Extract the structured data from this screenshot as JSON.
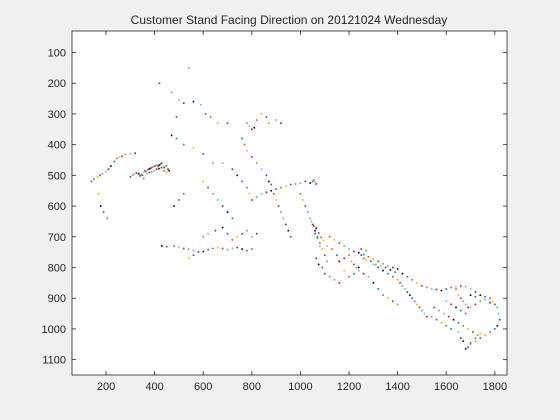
{
  "chart_data": {
    "type": "scatter",
    "title": "Customer Stand Facing Direction on 20121024 Wednesday",
    "xlabel": "",
    "ylabel": "",
    "xlim": [
      60,
      1850
    ],
    "ylim": [
      1150,
      30
    ],
    "y_reversed": true,
    "grid": false,
    "x_ticks": [
      200,
      400,
      600,
      800,
      1000,
      1200,
      1400,
      1600,
      1800
    ],
    "y_ticks": [
      100,
      200,
      300,
      400,
      500,
      600,
      700,
      800,
      900,
      1000,
      1100
    ],
    "colors": [
      "#0072bd",
      "#d95319",
      "#edb120",
      "#7e2f8e",
      "#77ac30",
      "#4dbeee",
      "#a2142f",
      "#000000"
    ],
    "points": [
      [
        140,
        520
      ],
      [
        150,
        512
      ],
      [
        165,
        505
      ],
      [
        175,
        500
      ],
      [
        185,
        495
      ],
      [
        200,
        488
      ],
      [
        210,
        480
      ],
      [
        220,
        470
      ],
      [
        235,
        455
      ],
      [
        245,
        445
      ],
      [
        255,
        440
      ],
      [
        265,
        438
      ],
      [
        280,
        432
      ],
      [
        300,
        430
      ],
      [
        320,
        428
      ],
      [
        178,
        600
      ],
      [
        190,
        620
      ],
      [
        205,
        640
      ],
      [
        170,
        560
      ],
      [
        300,
        505
      ],
      [
        310,
        500
      ],
      [
        315,
        495
      ],
      [
        325,
        492
      ],
      [
        335,
        495
      ],
      [
        340,
        502
      ],
      [
        345,
        498
      ],
      [
        355,
        490
      ],
      [
        360,
        485
      ],
      [
        365,
        488
      ],
      [
        370,
        482
      ],
      [
        375,
        480
      ],
      [
        380,
        478
      ],
      [
        385,
        476
      ],
      [
        390,
        474
      ],
      [
        395,
        472
      ],
      [
        400,
        470
      ],
      [
        405,
        468
      ],
      [
        410,
        466
      ],
      [
        415,
        470
      ],
      [
        420,
        466
      ],
      [
        425,
        462
      ],
      [
        430,
        460
      ],
      [
        435,
        472
      ],
      [
        440,
        475
      ],
      [
        445,
        470
      ],
      [
        450,
        468
      ],
      [
        455,
        480
      ],
      [
        460,
        485
      ],
      [
        350,
        500
      ],
      [
        355,
        510
      ],
      [
        368,
        495
      ],
      [
        378,
        490
      ],
      [
        388,
        488
      ],
      [
        398,
        485
      ],
      [
        408,
        480
      ],
      [
        418,
        478
      ],
      [
        428,
        475
      ],
      [
        438,
        485
      ],
      [
        448,
        490
      ],
      [
        420,
        200
      ],
      [
        470,
        230
      ],
      [
        500,
        255
      ],
      [
        520,
        265
      ],
      [
        560,
        260
      ],
      [
        610,
        300
      ],
      [
        630,
        310
      ],
      [
        660,
        330
      ],
      [
        700,
        330
      ],
      [
        540,
        150
      ],
      [
        590,
        270
      ],
      [
        490,
        310
      ],
      [
        470,
        370
      ],
      [
        490,
        380
      ],
      [
        520,
        400
      ],
      [
        560,
        410
      ],
      [
        600,
        430
      ],
      [
        640,
        460
      ],
      [
        680,
        460
      ],
      [
        720,
        480
      ],
      [
        740,
        500
      ],
      [
        760,
        520
      ],
      [
        780,
        540
      ],
      [
        790,
        560
      ],
      [
        800,
        580
      ],
      [
        820,
        570
      ],
      [
        840,
        560
      ],
      [
        860,
        555
      ],
      [
        880,
        550
      ],
      [
        900,
        545
      ],
      [
        920,
        540
      ],
      [
        940,
        535
      ],
      [
        960,
        530
      ],
      [
        980,
        528
      ],
      [
        1000,
        525
      ],
      [
        1020,
        520
      ],
      [
        1040,
        525
      ],
      [
        1050,
        520
      ],
      [
        1055,
        515
      ],
      [
        1060,
        522
      ],
      [
        1065,
        528
      ],
      [
        780,
        330
      ],
      [
        790,
        340
      ],
      [
        800,
        350
      ],
      [
        810,
        345
      ],
      [
        760,
        380
      ],
      [
        770,
        400
      ],
      [
        780,
        420
      ],
      [
        800,
        440
      ],
      [
        820,
        460
      ],
      [
        840,
        480
      ],
      [
        860,
        500
      ],
      [
        870,
        520
      ],
      [
        880,
        530
      ],
      [
        890,
        560
      ],
      [
        900,
        580
      ],
      [
        910,
        600
      ],
      [
        920,
        620
      ],
      [
        930,
        640
      ],
      [
        940,
        660
      ],
      [
        950,
        680
      ],
      [
        960,
        700
      ],
      [
        820,
        320
      ],
      [
        840,
        300
      ],
      [
        860,
        310
      ],
      [
        870,
        330
      ],
      [
        900,
        320
      ],
      [
        920,
        330
      ],
      [
        430,
        730
      ],
      [
        450,
        732
      ],
      [
        480,
        730
      ],
      [
        500,
        733
      ],
      [
        520,
        738
      ],
      [
        540,
        740
      ],
      [
        560,
        745
      ],
      [
        580,
        750
      ],
      [
        600,
        748
      ],
      [
        620,
        742
      ],
      [
        640,
        738
      ],
      [
        660,
        735
      ],
      [
        680,
        738
      ],
      [
        700,
        742
      ],
      [
        720,
        738
      ],
      [
        740,
        735
      ],
      [
        760,
        740
      ],
      [
        780,
        745
      ],
      [
        800,
        740
      ],
      [
        540,
        770
      ],
      [
        560,
        760
      ],
      [
        600,
        700
      ],
      [
        620,
        690
      ],
      [
        650,
        680
      ],
      [
        680,
        670
      ],
      [
        700,
        690
      ],
      [
        720,
        710
      ],
      [
        740,
        700
      ],
      [
        760,
        690
      ],
      [
        780,
        680
      ],
      [
        800,
        700
      ],
      [
        820,
        690
      ],
      [
        480,
        600
      ],
      [
        500,
        580
      ],
      [
        520,
        560
      ],
      [
        600,
        520
      ],
      [
        620,
        540
      ],
      [
        640,
        560
      ],
      [
        660,
        580
      ],
      [
        680,
        600
      ],
      [
        700,
        620
      ],
      [
        720,
        640
      ],
      [
        1000,
        560
      ],
      [
        1010,
        580
      ],
      [
        1020,
        600
      ],
      [
        1030,
        620
      ],
      [
        1040,
        640
      ],
      [
        1050,
        660
      ],
      [
        1060,
        680
      ],
      [
        1070,
        700
      ],
      [
        1080,
        720
      ],
      [
        1090,
        740
      ],
      [
        1100,
        760
      ],
      [
        1110,
        780
      ],
      [
        1045,
        650
      ],
      [
        1055,
        665
      ],
      [
        1065,
        672
      ],
      [
        1075,
        688
      ],
      [
        1085,
        702
      ],
      [
        1095,
        712
      ],
      [
        1060,
        690
      ],
      [
        1070,
        705
      ],
      [
        1080,
        730
      ],
      [
        1065,
        770
      ],
      [
        1075,
        790
      ],
      [
        1090,
        800
      ],
      [
        1120,
        700
      ],
      [
        1140,
        710
      ],
      [
        1160,
        720
      ],
      [
        1180,
        730
      ],
      [
        1200,
        740
      ],
      [
        1220,
        748
      ],
      [
        1240,
        752
      ],
      [
        1260,
        758
      ],
      [
        1280,
        765
      ],
      [
        1300,
        772
      ],
      [
        1320,
        780
      ],
      [
        1340,
        788
      ],
      [
        1360,
        795
      ],
      [
        1380,
        800
      ],
      [
        1400,
        805
      ],
      [
        1250,
        760
      ],
      [
        1260,
        770
      ],
      [
        1270,
        775
      ],
      [
        1290,
        780
      ],
      [
        1310,
        790
      ],
      [
        1330,
        795
      ],
      [
        1350,
        800
      ],
      [
        1370,
        808
      ],
      [
        1390,
        815
      ],
      [
        1200,
        760
      ],
      [
        1210,
        780
      ],
      [
        1220,
        790
      ],
      [
        1230,
        800
      ],
      [
        1240,
        810
      ],
      [
        1180,
        770
      ],
      [
        1160,
        780
      ],
      [
        1150,
        760
      ],
      [
        1130,
        740
      ],
      [
        1110,
        730
      ],
      [
        1250,
        740
      ],
      [
        1270,
        745
      ],
      [
        1300,
        790
      ],
      [
        1320,
        800
      ],
      [
        1340,
        810
      ],
      [
        1360,
        820
      ],
      [
        1380,
        830
      ],
      [
        1400,
        840
      ],
      [
        1410,
        850
      ],
      [
        1420,
        860
      ],
      [
        1430,
        870
      ],
      [
        1440,
        880
      ],
      [
        1450,
        890
      ],
      [
        1460,
        900
      ],
      [
        1470,
        910
      ],
      [
        1480,
        920
      ],
      [
        1490,
        930
      ],
      [
        1500,
        940
      ],
      [
        1510,
        950
      ],
      [
        1520,
        960
      ],
      [
        1420,
        820
      ],
      [
        1440,
        830
      ],
      [
        1460,
        840
      ],
      [
        1480,
        850
      ],
      [
        1500,
        860
      ],
      [
        1520,
        865
      ],
      [
        1540,
        870
      ],
      [
        1560,
        872
      ],
      [
        1580,
        875
      ],
      [
        1600,
        870
      ],
      [
        1620,
        865
      ],
      [
        1640,
        862
      ],
      [
        1660,
        860
      ],
      [
        1680,
        862
      ],
      [
        1700,
        870
      ],
      [
        1720,
        880
      ],
      [
        1740,
        890
      ],
      [
        1760,
        895
      ],
      [
        1780,
        900
      ],
      [
        1790,
        910
      ],
      [
        1800,
        920
      ],
      [
        1810,
        930
      ],
      [
        1815,
        950
      ],
      [
        1820,
        970
      ],
      [
        1810,
        990
      ],
      [
        1800,
        1000
      ],
      [
        1780,
        1010
      ],
      [
        1760,
        1020
      ],
      [
        1740,
        1030
      ],
      [
        1720,
        1040
      ],
      [
        1700,
        1050
      ],
      [
        1690,
        1060
      ],
      [
        1680,
        1065
      ],
      [
        1700,
        1045
      ],
      [
        1720,
        1030
      ],
      [
        1740,
        1015
      ],
      [
        1550,
        930
      ],
      [
        1570,
        940
      ],
      [
        1590,
        950
      ],
      [
        1610,
        960
      ],
      [
        1630,
        970
      ],
      [
        1650,
        980
      ],
      [
        1670,
        990
      ],
      [
        1690,
        1000
      ],
      [
        1710,
        1010
      ],
      [
        1730,
        1020
      ],
      [
        1650,
        1010
      ],
      [
        1660,
        1030
      ],
      [
        1670,
        1040
      ],
      [
        1620,
        1000
      ],
      [
        1600,
        990
      ],
      [
        1580,
        980
      ],
      [
        1560,
        970
      ],
      [
        1540,
        960
      ],
      [
        1600,
        910
      ],
      [
        1620,
        920
      ],
      [
        1640,
        930
      ],
      [
        1660,
        940
      ],
      [
        1680,
        950
      ],
      [
        1700,
        930
      ],
      [
        1720,
        920
      ],
      [
        1740,
        910
      ],
      [
        1760,
        905
      ],
      [
        1780,
        915
      ],
      [
        1700,
        890
      ],
      [
        1720,
        895
      ],
      [
        1640,
        870
      ],
      [
        1650,
        890
      ],
      [
        1660,
        900
      ],
      [
        1670,
        910
      ],
      [
        1680,
        920
      ],
      [
        1690,
        930
      ],
      [
        1300,
        850
      ],
      [
        1320,
        870
      ],
      [
        1340,
        890
      ],
      [
        1360,
        900
      ],
      [
        1380,
        910
      ],
      [
        1400,
        920
      ],
      [
        1280,
        830
      ],
      [
        1260,
        820
      ],
      [
        1240,
        800
      ],
      [
        1220,
        820
      ],
      [
        1200,
        830
      ],
      [
        1180,
        810
      ],
      [
        1100,
        820
      ],
      [
        1120,
        830
      ],
      [
        1140,
        840
      ],
      [
        1160,
        850
      ]
    ]
  }
}
